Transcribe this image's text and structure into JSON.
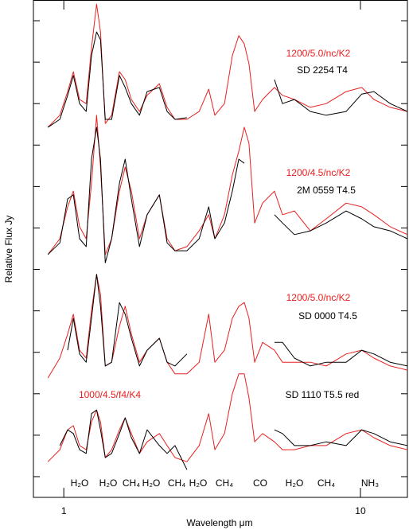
{
  "chart_data": {
    "type": "line",
    "xlabel": "Wavelength μm",
    "ylabel": "Relative Flux Jy",
    "xscale": "log",
    "xlim": [
      0.79,
      14.4
    ],
    "ylim": [
      -0.5,
      11.5
    ],
    "xticks": [
      1,
      10
    ],
    "yticks": [
      0,
      1,
      2,
      3,
      4,
      5,
      6,
      7,
      8,
      9,
      10,
      11
    ],
    "x": [
      0.884,
      0.97,
      1.03,
      1.077,
      1.13,
      1.19,
      1.24,
      1.29,
      1.33,
      1.38,
      1.45,
      1.54,
      1.61,
      1.69,
      1.8,
      1.91,
      2.1,
      2.23,
      2.37,
      2.6,
      2.86,
      3.08,
      3.23,
      3.48,
      3.7,
      3.89,
      4.06,
      4.21,
      4.4,
      4.68,
      5.13,
      5.46,
      5.99,
      6.78,
      7.67,
      8.95,
      10.1,
      11.1,
      12.6,
      14.4
    ],
    "series": [
      {
        "name": "1200/5.0/nc/K2",
        "color": "#e82020",
        "values": [
          8.43,
          8.72,
          9.29,
          9.77,
          9.1,
          9.0,
          10.35,
          11.4,
          10.73,
          8.52,
          8.72,
          9.77,
          9.58,
          9.1,
          8.81,
          9.2,
          9.48,
          8.91,
          8.62,
          8.62,
          8.81,
          9.35,
          8.72,
          9.0,
          10.16,
          10.64,
          10.44,
          9.96,
          8.81,
          9.1,
          9.39,
          9.2,
          9.1,
          8.91,
          9.0,
          9.29,
          9.39,
          9.1,
          8.91,
          8.81
        ]
      },
      {
        "name": "SD 2254 T4",
        "color": "#000000",
        "values": [
          8.43,
          8.62,
          9.2,
          9.68,
          9.0,
          8.81,
          10.16,
          10.73,
          10.54,
          8.62,
          8.62,
          9.68,
          9.39,
          9.0,
          8.72,
          9.29,
          9.39,
          8.81,
          8.62,
          8.66,
          null,
          null,
          null,
          null,
          null,
          null,
          null,
          null,
          null,
          null,
          9.58,
          9.0,
          9.1,
          8.81,
          8.72,
          8.81,
          9.23,
          9.29,
          9.0,
          8.81
        ]
      },
      {
        "name": "1200/4.5/nc/K2",
        "color": "#e82020",
        "values": [
          5.36,
          5.74,
          6.51,
          6.89,
          6.03,
          5.74,
          7.08,
          8.72,
          7.47,
          5.36,
          5.74,
          6.89,
          7.47,
          6.89,
          5.74,
          6.32,
          6.8,
          5.74,
          5.45,
          5.55,
          5.93,
          6.32,
          5.74,
          6.32,
          7.28,
          7.85,
          8.43,
          8.04,
          6.12,
          6.6,
          6.89,
          6.32,
          6.41,
          5.93,
          6.22,
          6.6,
          6.51,
          6.32,
          6.03,
          5.84
        ]
      },
      {
        "name": "2M 0559 T4.5",
        "color": "#000000",
        "values": [
          5.36,
          5.64,
          6.7,
          6.8,
          5.74,
          5.55,
          7.66,
          8.43,
          7.66,
          5.16,
          5.74,
          7.08,
          7.66,
          6.7,
          5.55,
          6.32,
          6.8,
          5.64,
          5.45,
          5.45,
          5.74,
          6.51,
          5.74,
          6.12,
          6.89,
          7.66,
          7.56,
          null,
          null,
          null,
          6.32,
          6.12,
          5.84,
          5.93,
          6.12,
          6.41,
          6.22,
          6.03,
          5.93,
          5.74
        ]
      },
      {
        "name": "1200/5.0/nc/K2",
        "color": "#e82020",
        "values": [
          2.38,
          2.86,
          3.44,
          3.92,
          3.05,
          2.86,
          4.01,
          4.88,
          4.4,
          2.67,
          2.76,
          3.63,
          4.11,
          3.44,
          2.76,
          3.05,
          3.34,
          2.76,
          2.48,
          2.48,
          2.76,
          3.92,
          2.76,
          3.05,
          3.82,
          4.11,
          4.2,
          3.82,
          2.76,
          3.24,
          3.05,
          2.76,
          2.76,
          2.76,
          2.67,
          2.96,
          3.05,
          2.86,
          2.67,
          2.57
        ]
      },
      {
        "name": "SD 0000 T4.5",
        "color": "#000000",
        "values": [
          null,
          null,
          3.05,
          3.82,
          2.96,
          2.76,
          3.82,
          4.88,
          4.11,
          2.67,
          2.76,
          4.2,
          3.92,
          3.34,
          2.67,
          3.05,
          3.34,
          2.76,
          2.67,
          2.96,
          null,
          null,
          null,
          null,
          null,
          null,
          null,
          null,
          null,
          null,
          3.24,
          3.24,
          2.86,
          2.67,
          2.76,
          2.76,
          3.05,
          2.96,
          2.76,
          2.67
        ]
      },
      {
        "name": "1000/4.5/f4/K4",
        "color": "#e82020",
        "values": [
          0.36,
          0.65,
          1.13,
          1.23,
          0.75,
          0.65,
          1.32,
          1.61,
          1.32,
          0.46,
          0.65,
          1.13,
          1.42,
          1.04,
          0.56,
          0.84,
          1.04,
          0.75,
          0.46,
          0.36,
          0.75,
          1.52,
          0.65,
          1.04,
          2.0,
          2.48,
          2.48,
          1.9,
          0.84,
          1.04,
          0.84,
          0.65,
          0.65,
          0.75,
          0.75,
          1.04,
          1.13,
          0.94,
          0.75,
          0.65
        ]
      },
      {
        "name": "SD 1110 T5.5 red",
        "color": "#000000",
        "values": [
          null,
          0.75,
          1.13,
          1.04,
          0.65,
          0.56,
          1.52,
          1.61,
          1.13,
          0.46,
          0.56,
          1.04,
          1.42,
          0.94,
          0.56,
          1.13,
          0.75,
          0.56,
          0.75,
          0.17,
          null,
          null,
          null,
          null,
          null,
          null,
          null,
          null,
          null,
          null,
          1.13,
          1.04,
          0.75,
          0.75,
          0.84,
          0.75,
          1.13,
          1.04,
          0.84,
          0.75
        ]
      }
    ],
    "annotations": [
      "H₂O",
      "H₂O",
      "CH₄",
      "H₂O",
      "CH₄",
      "H₂O",
      "CH₄",
      "CO",
      "H₂O",
      "CH₄",
      "NH₃"
    ]
  }
}
